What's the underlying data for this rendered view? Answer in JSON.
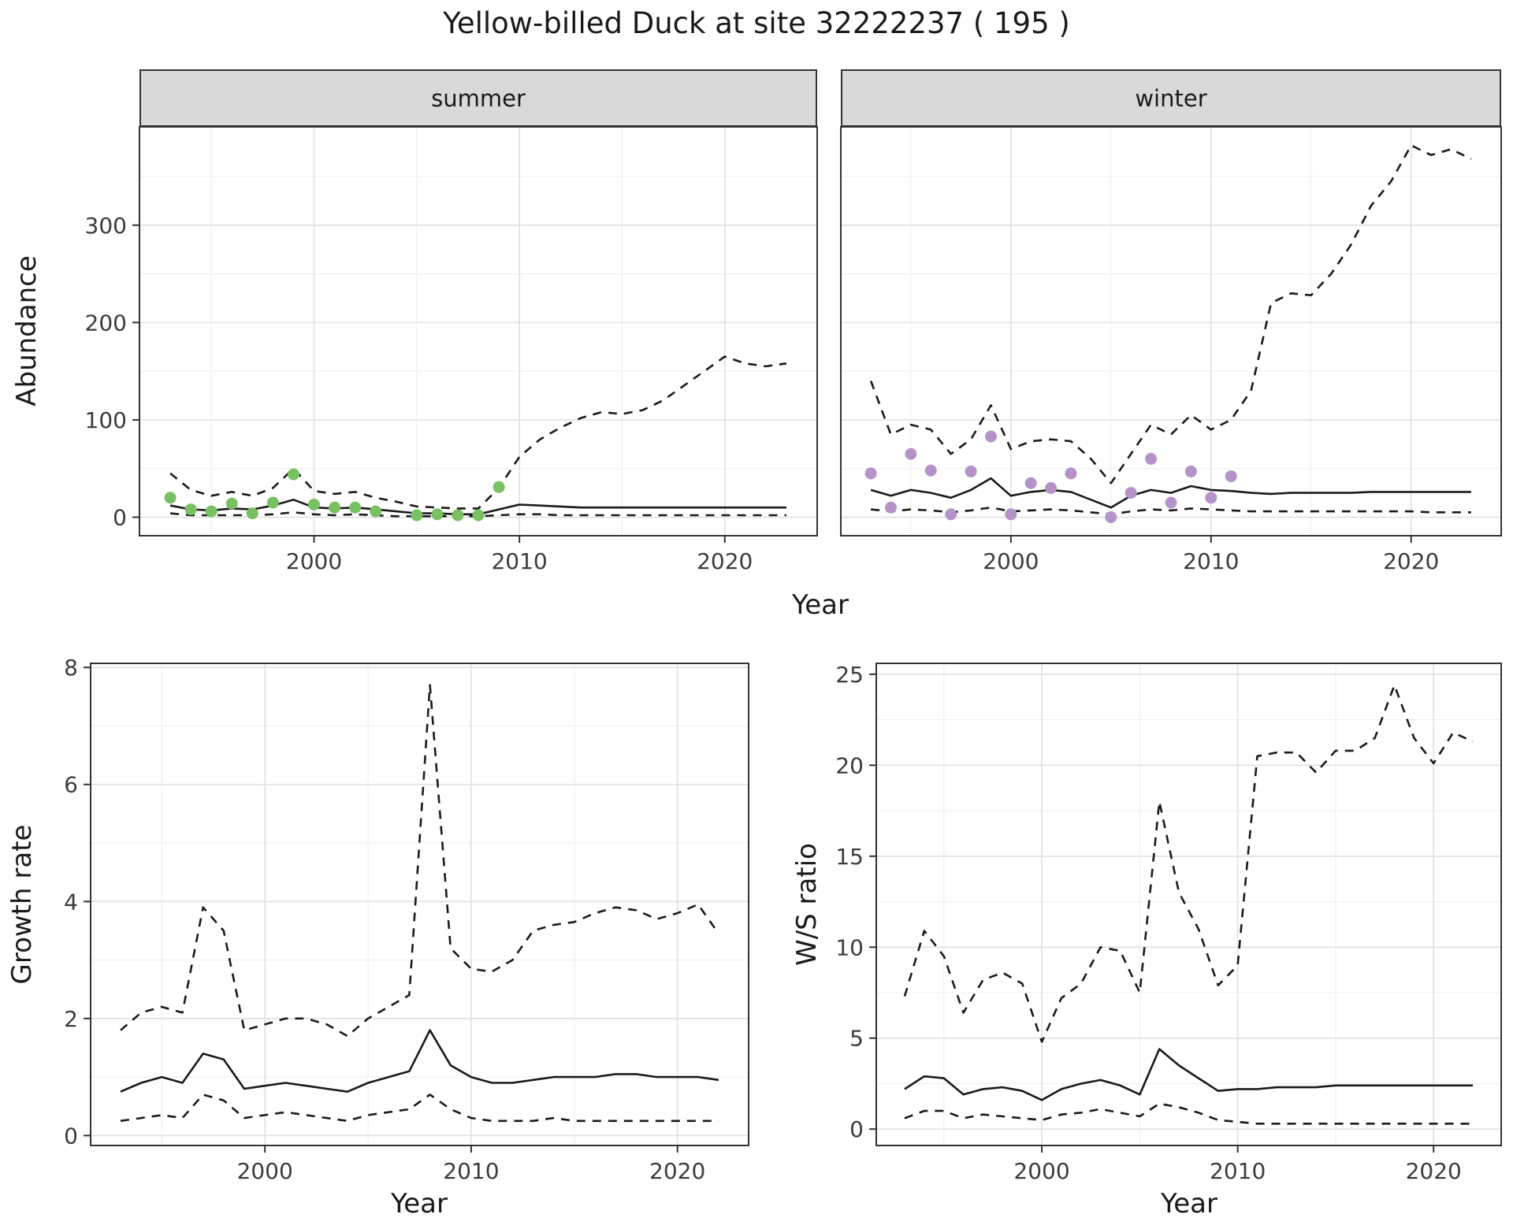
{
  "title": "Yellow-billed Duck at site 32222237 ( 195 )",
  "labels": {
    "abundance": "Abundance",
    "growth_rate": "Growth rate",
    "ws_ratio": "W/S ratio",
    "year": "Year"
  },
  "facets": {
    "summer": "summer",
    "winter": "winter"
  },
  "colors": {
    "summer_point": "#78c061",
    "winter_point": "#b593c8",
    "line": "#1a1a1a",
    "strip_bg": "#d9d9d9",
    "grid_major": "#e0e0e0",
    "grid_minor": "#efefef",
    "panel_border": "#333333",
    "tick_text": "#3c3c3c"
  },
  "chart_data": [
    {
      "id": "abundance_summer",
      "type": "line",
      "facet": "summer",
      "xlabel": "Year",
      "ylabel": "Abundance",
      "xlim": [
        1991.5,
        2024.5
      ],
      "ylim": [
        -19,
        401
      ],
      "xticks": [
        2000,
        2010,
        2020
      ],
      "xminor": [
        1995,
        2005,
        2015
      ],
      "yticks": [
        0,
        100,
        200,
        300
      ],
      "yminor": [
        50,
        150,
        250,
        350
      ],
      "series": [
        {
          "name": "upper_ci",
          "style": "dashed",
          "x": [
            1993,
            1994,
            1995,
            1996,
            1997,
            1998,
            1999,
            2000,
            2001,
            2002,
            2003,
            2004,
            2005,
            2006,
            2007,
            2008,
            2009,
            2010,
            2011,
            2012,
            2013,
            2014,
            2015,
            2016,
            2017,
            2018,
            2019,
            2020,
            2021,
            2022,
            2023
          ],
          "y": [
            45,
            28,
            22,
            26,
            22,
            30,
            50,
            27,
            24,
            26,
            20,
            16,
            11,
            10,
            9,
            9,
            30,
            62,
            80,
            92,
            102,
            108,
            106,
            110,
            120,
            135,
            150,
            165,
            158,
            155,
            158
          ]
        },
        {
          "name": "lower_ci",
          "style": "dashed",
          "x": [
            1993,
            1994,
            1995,
            1996,
            1997,
            1998,
            1999,
            2000,
            2001,
            2002,
            2003,
            2004,
            2005,
            2006,
            2007,
            2008,
            2009,
            2010,
            2011,
            2012,
            2013,
            2014,
            2015,
            2016,
            2017,
            2018,
            2019,
            2020,
            2021,
            2022,
            2023
          ],
          "y": [
            4,
            2,
            2,
            2,
            2,
            3,
            5,
            3,
            2,
            3,
            2,
            1,
            1,
            1,
            1,
            1,
            2,
            3,
            3,
            2,
            2,
            2,
            2,
            2,
            2,
            2,
            2,
            2,
            2,
            2,
            2
          ]
        },
        {
          "name": "median_estimate",
          "style": "solid",
          "x": [
            1993,
            1994,
            1995,
            1996,
            1997,
            1998,
            1999,
            2000,
            2001,
            2002,
            2003,
            2004,
            2005,
            2006,
            2007,
            2008,
            2009,
            2010,
            2011,
            2012,
            2013,
            2014,
            2015,
            2016,
            2017,
            2018,
            2019,
            2020,
            2021,
            2022,
            2023
          ],
          "y": [
            12,
            8,
            7,
            9,
            8,
            12,
            18,
            10,
            9,
            10,
            8,
            6,
            4,
            4,
            3,
            3,
            8,
            13,
            12,
            11,
            10,
            10,
            10,
            10,
            10,
            10,
            10,
            10,
            10,
            10,
            10
          ]
        },
        {
          "name": "observed_counts",
          "style": "points",
          "color_key": "summer_point",
          "x": [
            1993,
            1994,
            1995,
            1996,
            1997,
            1998,
            1999,
            2000,
            2001,
            2002,
            2003,
            2005,
            2006,
            2007,
            2008,
            2009
          ],
          "y": [
            20,
            8,
            6,
            14,
            4,
            15,
            44,
            13,
            10,
            10,
            6,
            2,
            3,
            2,
            2,
            31
          ]
        }
      ]
    },
    {
      "id": "abundance_winter",
      "type": "line",
      "facet": "winter",
      "xlabel": "Year",
      "ylabel": "Abundance",
      "xlim": [
        1991.5,
        2024.5
      ],
      "ylim": [
        -19,
        401
      ],
      "xticks": [
        2000,
        2010,
        2020
      ],
      "xminor": [
        1995,
        2005,
        2015
      ],
      "yticks": [
        0,
        100,
        200,
        300
      ],
      "yminor": [
        50,
        150,
        250,
        350
      ],
      "series": [
        {
          "name": "upper_ci",
          "style": "dashed",
          "x": [
            1993,
            1994,
            1995,
            1996,
            1997,
            1998,
            1999,
            2000,
            2001,
            2002,
            2003,
            2004,
            2005,
            2006,
            2007,
            2008,
            2009,
            2010,
            2011,
            2012,
            2013,
            2014,
            2015,
            2016,
            2017,
            2018,
            2019,
            2020,
            2021,
            2022,
            2023
          ],
          "y": [
            140,
            85,
            95,
            90,
            65,
            80,
            115,
            70,
            78,
            80,
            78,
            60,
            35,
            65,
            95,
            85,
            105,
            90,
            100,
            130,
            220,
            230,
            228,
            250,
            280,
            320,
            345,
            382,
            372,
            378,
            368
          ]
        },
        {
          "name": "lower_ci",
          "style": "dashed",
          "x": [
            1993,
            1994,
            1995,
            1996,
            1997,
            1998,
            1999,
            2000,
            2001,
            2002,
            2003,
            2004,
            2005,
            2006,
            2007,
            2008,
            2009,
            2010,
            2011,
            2012,
            2013,
            2014,
            2015,
            2016,
            2017,
            2018,
            2019,
            2020,
            2021,
            2022,
            2023
          ],
          "y": [
            8,
            6,
            8,
            7,
            5,
            7,
            10,
            6,
            7,
            8,
            7,
            5,
            3,
            6,
            8,
            7,
            9,
            8,
            7,
            6,
            6,
            6,
            6,
            6,
            6,
            6,
            6,
            6,
            5,
            5,
            5
          ]
        },
        {
          "name": "median_estimate",
          "style": "solid",
          "x": [
            1993,
            1994,
            1995,
            1996,
            1997,
            1998,
            1999,
            2000,
            2001,
            2002,
            2003,
            2004,
            2005,
            2006,
            2007,
            2008,
            2009,
            2010,
            2011,
            2012,
            2013,
            2014,
            2015,
            2016,
            2017,
            2018,
            2019,
            2020,
            2021,
            2022,
            2023
          ],
          "y": [
            28,
            22,
            28,
            25,
            20,
            28,
            40,
            22,
            26,
            28,
            26,
            18,
            10,
            22,
            28,
            25,
            32,
            28,
            27,
            25,
            24,
            25,
            25,
            25,
            25,
            26,
            26,
            26,
            26,
            26,
            26
          ]
        },
        {
          "name": "observed_counts",
          "style": "points",
          "color_key": "winter_point",
          "x": [
            1993,
            1994,
            1995,
            1996,
            1997,
            1998,
            1999,
            2000,
            2001,
            2002,
            2003,
            2005,
            2006,
            2007,
            2008,
            2009,
            2010,
            2011
          ],
          "y": [
            45,
            10,
            65,
            48,
            3,
            47,
            83,
            3,
            35,
            30,
            45,
            0,
            25,
            60,
            15,
            47,
            20,
            42
          ]
        }
      ]
    },
    {
      "id": "growth_rate",
      "type": "line",
      "xlabel": "Year",
      "ylabel": "Growth rate",
      "xlim": [
        1991.55,
        2023.45
      ],
      "ylim": [
        -0.17,
        8.07
      ],
      "xticks": [
        2000,
        2010,
        2020
      ],
      "xminor": [
        1995,
        2005,
        2015
      ],
      "yticks": [
        0,
        2,
        4,
        6,
        8
      ],
      "yminor": [
        1,
        3,
        5,
        7
      ],
      "series": [
        {
          "name": "upper_ci",
          "style": "dashed",
          "x": [
            1993,
            1994,
            1995,
            1996,
            1997,
            1998,
            1999,
            2000,
            2001,
            2002,
            2003,
            2004,
            2005,
            2006,
            2007,
            2008,
            2009,
            2010,
            2011,
            2012,
            2013,
            2014,
            2015,
            2016,
            2017,
            2018,
            2019,
            2020,
            2021,
            2022
          ],
          "y": [
            1.8,
            2.1,
            2.2,
            2.1,
            3.9,
            3.5,
            1.8,
            1.9,
            2.0,
            2.0,
            1.9,
            1.7,
            2.0,
            2.2,
            2.4,
            7.7,
            3.2,
            2.85,
            2.8,
            3.0,
            3.5,
            3.6,
            3.65,
            3.8,
            3.9,
            3.85,
            3.7,
            3.8,
            3.95,
            3.45
          ]
        },
        {
          "name": "lower_ci",
          "style": "dashed",
          "x": [
            1993,
            1994,
            1995,
            1996,
            1997,
            1998,
            1999,
            2000,
            2001,
            2002,
            2003,
            2004,
            2005,
            2006,
            2007,
            2008,
            2009,
            2010,
            2011,
            2012,
            2013,
            2014,
            2015,
            2016,
            2017,
            2018,
            2019,
            2020,
            2021,
            2022
          ],
          "y": [
            0.25,
            0.3,
            0.35,
            0.3,
            0.7,
            0.6,
            0.3,
            0.35,
            0.4,
            0.35,
            0.3,
            0.25,
            0.35,
            0.4,
            0.45,
            0.7,
            0.45,
            0.3,
            0.25,
            0.25,
            0.25,
            0.3,
            0.25,
            0.25,
            0.25,
            0.25,
            0.25,
            0.25,
            0.25,
            0.25
          ]
        },
        {
          "name": "median_estimate",
          "style": "solid",
          "x": [
            1993,
            1994,
            1995,
            1996,
            1997,
            1998,
            1999,
            2000,
            2001,
            2002,
            2003,
            2004,
            2005,
            2006,
            2007,
            2008,
            2009,
            2010,
            2011,
            2012,
            2013,
            2014,
            2015,
            2016,
            2017,
            2018,
            2019,
            2020,
            2021,
            2022
          ],
          "y": [
            0.75,
            0.9,
            1.0,
            0.9,
            1.4,
            1.3,
            0.8,
            0.85,
            0.9,
            0.85,
            0.8,
            0.75,
            0.9,
            1.0,
            1.1,
            1.8,
            1.2,
            1.0,
            0.9,
            0.9,
            0.95,
            1.0,
            1.0,
            1.0,
            1.05,
            1.05,
            1.0,
            1.0,
            1.0,
            0.95
          ]
        }
      ]
    },
    {
      "id": "ws_ratio",
      "type": "line",
      "xlabel": "Year",
      "ylabel": "W/S ratio",
      "xlim": [
        1991.55,
        2023.45
      ],
      "ylim": [
        -0.9,
        25.6
      ],
      "xticks": [
        2000,
        2010,
        2020
      ],
      "xminor": [
        1995,
        2005,
        2015
      ],
      "yticks": [
        0,
        5,
        10,
        15,
        20,
        25
      ],
      "yminor": [
        2.5,
        7.5,
        12.5,
        17.5,
        22.5
      ],
      "series": [
        {
          "name": "upper_ci",
          "style": "dashed",
          "x": [
            1993,
            1994,
            1995,
            1996,
            1997,
            1998,
            1999,
            2000,
            2001,
            2002,
            2003,
            2004,
            2005,
            2006,
            2007,
            2008,
            2009,
            2010,
            2011,
            2012,
            2013,
            2014,
            2015,
            2016,
            2017,
            2018,
            2019,
            2020,
            2021,
            2022
          ],
          "y": [
            7.3,
            10.9,
            9.5,
            6.4,
            8.2,
            8.6,
            8.0,
            4.8,
            7.2,
            8.0,
            10.0,
            9.8,
            7.5,
            18.0,
            13.0,
            11.0,
            7.9,
            9.0,
            20.5,
            20.7,
            20.7,
            19.6,
            20.8,
            20.8,
            21.5,
            24.4,
            21.5,
            20.1,
            21.8,
            21.3
          ]
        },
        {
          "name": "lower_ci",
          "style": "dashed",
          "x": [
            1993,
            1994,
            1995,
            1996,
            1997,
            1998,
            1999,
            2000,
            2001,
            2002,
            2003,
            2004,
            2005,
            2006,
            2007,
            2008,
            2009,
            2010,
            2011,
            2012,
            2013,
            2014,
            2015,
            2016,
            2017,
            2018,
            2019,
            2020,
            2021,
            2022
          ],
          "y": [
            0.6,
            1.0,
            1.0,
            0.6,
            0.8,
            0.7,
            0.6,
            0.5,
            0.8,
            0.9,
            1.1,
            0.9,
            0.7,
            1.4,
            1.2,
            0.9,
            0.5,
            0.4,
            0.3,
            0.3,
            0.3,
            0.3,
            0.3,
            0.3,
            0.3,
            0.3,
            0.3,
            0.3,
            0.3,
            0.3
          ]
        },
        {
          "name": "median_estimate",
          "style": "solid",
          "x": [
            1993,
            1994,
            1995,
            1996,
            1997,
            1998,
            1999,
            2000,
            2001,
            2002,
            2003,
            2004,
            2005,
            2006,
            2007,
            2008,
            2009,
            2010,
            2011,
            2012,
            2013,
            2014,
            2015,
            2016,
            2017,
            2018,
            2019,
            2020,
            2021,
            2022
          ],
          "y": [
            2.2,
            2.9,
            2.8,
            1.9,
            2.2,
            2.3,
            2.1,
            1.6,
            2.2,
            2.5,
            2.7,
            2.4,
            1.9,
            4.4,
            3.5,
            2.8,
            2.1,
            2.2,
            2.2,
            2.3,
            2.3,
            2.3,
            2.4,
            2.4,
            2.4,
            2.4,
            2.4,
            2.4,
            2.4,
            2.4
          ]
        }
      ]
    }
  ]
}
